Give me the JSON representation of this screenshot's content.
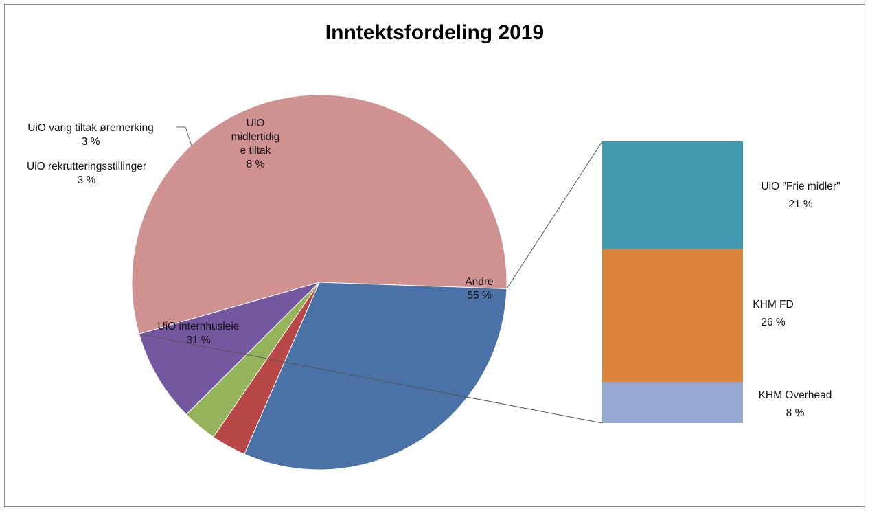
{
  "chart_data": {
    "type": "pie",
    "subtype": "bar-of-pie",
    "title": "Inntektsfordeling 2019",
    "pie": [
      {
        "name": "Andre",
        "value": 55,
        "label": "55 %",
        "color": "#d09191",
        "label_lines": [
          "Andre"
        ]
      },
      {
        "name": "UiO internhusleie",
        "value": 31,
        "label": "31 %",
        "color": "#4a72a6",
        "label_lines": [
          "UiO internhusleie"
        ]
      },
      {
        "name": "UiO rekrutteringsstillinger",
        "value": 3,
        "label": "3 %",
        "color": "#b84747",
        "label_lines": [
          "UiO rekrutteringsstillinger"
        ]
      },
      {
        "name": "UiO varig tiltak øremerking",
        "value": 3,
        "label": "3 %",
        "color": "#94b35a",
        "label_lines": [
          "UiO varig tiltak øremerking"
        ]
      },
      {
        "name": "UiO midlertidige tiltak",
        "value": 8,
        "label": "8 %",
        "color": "#7358a0",
        "label_lines": [
          "UiO",
          "midlertidig",
          "e tiltak"
        ]
      }
    ],
    "bar": [
      {
        "name": "UiO \"Frie midler\"",
        "value": 21,
        "label": "21 %",
        "color": "#4399b0"
      },
      {
        "name": "KHM FD",
        "value": 26,
        "label": "26 %",
        "color": "#db843c"
      },
      {
        "name": "KHM Overhead",
        "value": 8,
        "label": "8 %",
        "color": "#95a9d3"
      }
    ],
    "bar_expands": "Andre",
    "legend": "none",
    "data_labels": "category name and percentage"
  }
}
